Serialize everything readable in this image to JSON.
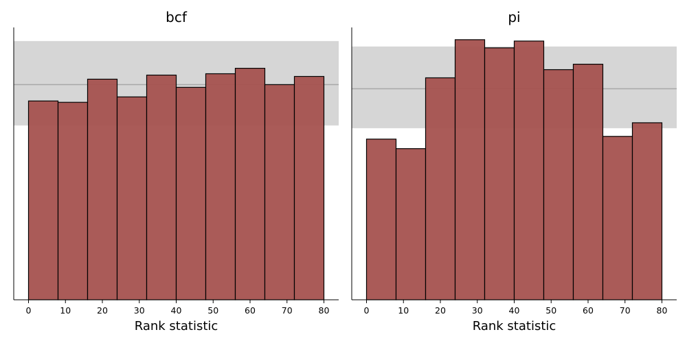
{
  "chart_data": [
    {
      "type": "bar",
      "title": "bcf",
      "xlabel": "Rank statistic",
      "ylabel": "",
      "bin_edges": [
        0,
        8,
        16,
        24,
        32,
        40,
        48,
        56,
        64,
        72,
        80
      ],
      "values": [
        73,
        72.5,
        81,
        74.5,
        82.5,
        78,
        83,
        85,
        79,
        82
      ],
      "xticks": [
        0,
        10,
        20,
        30,
        40,
        50,
        60,
        70,
        80
      ],
      "xlim": [
        -4,
        84
      ],
      "ylim": [
        0,
        100
      ],
      "reference_line": 79,
      "reference_band": [
        64,
        95
      ],
      "bar_color": "#a5524f",
      "band_color": "#d6d6d6",
      "line_color": "#a8a8a8",
      "grid": false,
      "yticks_visible": false
    },
    {
      "type": "bar",
      "title": "pi",
      "xlabel": "Rank statistic",
      "ylabel": "",
      "bin_edges": [
        0,
        8,
        16,
        24,
        32,
        40,
        48,
        56,
        64,
        72,
        80
      ],
      "values": [
        59,
        55.5,
        81.5,
        95.5,
        92.5,
        95,
        84.5,
        86.5,
        60,
        65
      ],
      "xticks": [
        0,
        10,
        20,
        30,
        40,
        50,
        60,
        70,
        80
      ],
      "xlim": [
        -4,
        84
      ],
      "ylim": [
        0,
        100
      ],
      "reference_line": 77.5,
      "reference_band": [
        63,
        93
      ],
      "bar_color": "#a5524f",
      "band_color": "#d6d6d6",
      "line_color": "#a8a8a8",
      "grid": false,
      "yticks_visible": false
    }
  ]
}
